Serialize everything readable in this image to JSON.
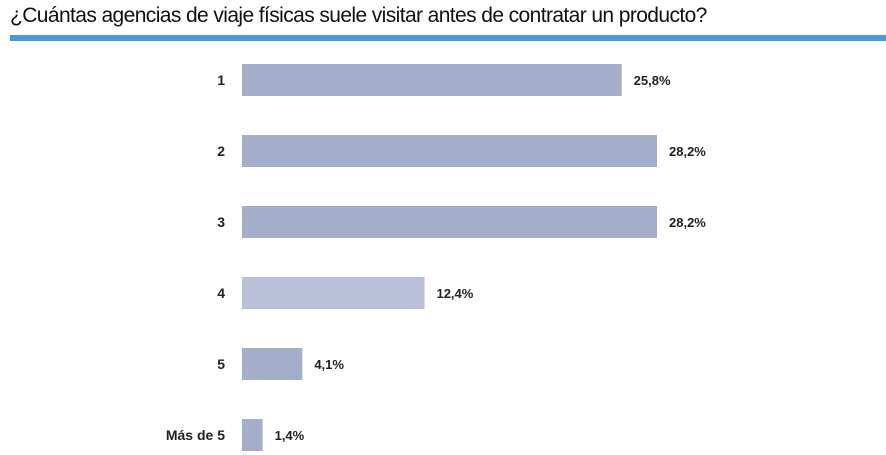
{
  "title": "¿Cuántas agencias de viaje físicas suele visitar antes de contratar un producto?",
  "colors": {
    "accent_rule": "#4a9ad8",
    "bar": "#a7b0cc",
    "bar_light": "#b9bfd8"
  },
  "chart_data": {
    "type": "bar",
    "orientation": "horizontal",
    "title": "",
    "categories": [
      "1",
      "2",
      "3",
      "4",
      "5",
      "Más de 5"
    ],
    "values": [
      25.8,
      28.2,
      28.2,
      12.4,
      4.1,
      1.4
    ],
    "data_labels": [
      "25,8%",
      "28,2%",
      "28,2%",
      "12,4%",
      "4,1%",
      "1,4%"
    ],
    "xlabel": "",
    "ylabel": "",
    "xlim": [
      0,
      28.2
    ],
    "grid": false,
    "legend": "none"
  }
}
